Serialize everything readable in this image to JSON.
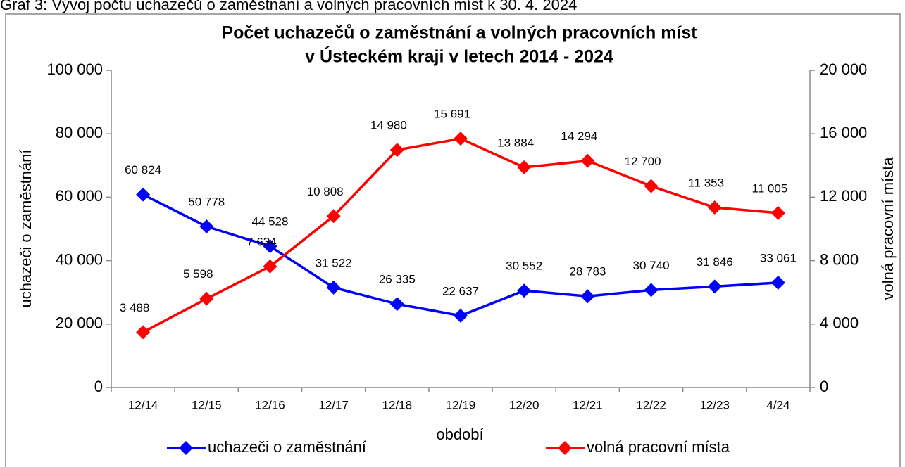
{
  "caption": "Graf 3: Vývoj počtu uchazečů o zaměstnání a volných pracovních míst k 30. 4. 2024",
  "chart_data": {
    "type": "line",
    "title": "Počet uchazečů o zaměstnání a volných pracovních míst",
    "subtitle": "v Ústeckém kraji v letech 2014 - 2024",
    "x_label": "období",
    "y_label": "uchazeči o zaměstnání",
    "y2_label": "volná pracovní místa",
    "categories": [
      "12/14",
      "12/15",
      "12/16",
      "12/17",
      "12/18",
      "12/19",
      "12/20",
      "12/21",
      "12/22",
      "12/23",
      "4/24"
    ],
    "series": [
      {
        "name": "uchazeči o zaměstnání",
        "color": "#0000ff",
        "values": [
          60824,
          50778,
          44528,
          31522,
          26335,
          22637,
          30552,
          28783,
          30740,
          31846,
          33061
        ],
        "value_labels": [
          "60 824",
          "50 778",
          "44 528",
          "31 522",
          "26 335",
          "22 637",
          "30 552",
          "28 783",
          "30 740",
          "31 846",
          "33 061"
        ]
      },
      {
        "name": "volná pracovní místa",
        "color": "#ff0000",
        "axis": "y2",
        "values": [
          3488,
          5598,
          7634,
          10808,
          14980,
          15691,
          13884,
          14294,
          12700,
          11353,
          11005
        ],
        "value_labels": [
          "3 488",
          "5 598",
          "7 634",
          "10 808",
          "14 980",
          "15 691",
          "13 884",
          "14 294",
          "12 700",
          "11 353",
          "11 005"
        ]
      }
    ],
    "ylim": [
      0,
      100000
    ],
    "yticks": [
      0,
      {
        "value": 20000,
        "label": "20 000"
      },
      {
        "value": 40000,
        "label": "40 000"
      },
      {
        "value": 60000,
        "label": "60 000"
      },
      {
        "value": 80000,
        "label": "80 000"
      },
      {
        "value": 100000,
        "label": "100 000"
      }
    ],
    "y2lim": [
      0,
      20000
    ],
    "y2ticks": [
      0,
      {
        "value": 4000,
        "label": "4 000"
      },
      {
        "value": 8000,
        "label": "8 000"
      },
      {
        "value": 12000,
        "label": "12 000"
      },
      {
        "value": 16000,
        "label": "16 000"
      },
      {
        "value": 20000,
        "label": "20 000"
      }
    ],
    "grid": false,
    "legend": "bottom"
  }
}
